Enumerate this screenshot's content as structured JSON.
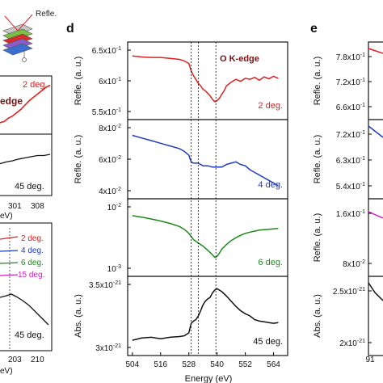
{
  "chart_data": [
    {
      "panel_label": "",
      "type": "line",
      "note": "left panels (cropped at image edge)",
      "header_text": "Refle.",
      "top": {
        "series_label": "2 deg.",
        "annotation": "edge",
        "color": "#e02020",
        "points": [
          [
            285,
            0.18
          ],
          [
            287,
            0.2
          ],
          [
            289,
            0.26
          ],
          [
            291,
            0.3
          ],
          [
            293,
            0.36
          ],
          [
            295,
            0.42
          ],
          [
            297,
            0.5
          ],
          [
            299,
            0.58
          ],
          [
            301,
            0.64
          ],
          [
            303,
            0.7
          ],
          [
            305,
            0.76
          ],
          [
            307,
            0.82
          ],
          [
            309,
            0.86
          ]
        ]
      },
      "middle": {
        "series_label": "45 deg.",
        "color": "#111111",
        "x_tick_labels": [
          "301",
          "308"
        ],
        "points": [
          [
            285,
            0.52
          ],
          [
            288,
            0.55
          ],
          [
            291,
            0.57
          ],
          [
            294,
            0.6
          ],
          [
            297,
            0.62
          ],
          [
            300,
            0.64
          ],
          [
            303,
            0.66
          ],
          [
            306,
            0.66
          ],
          [
            309,
            0.68
          ]
        ],
        "xlabel": "eV)"
      },
      "bottom": {
        "legend": [
          {
            "label": "2 deg.",
            "color": "#e02020"
          },
          {
            "label": "4 deg.",
            "color": "#1f3bbf"
          },
          {
            "label": "6 deg.",
            "color": "#1a8a1a"
          },
          {
            "label": "15 deg.",
            "color": "#d020c0"
          }
        ],
        "series_label": "45 deg.",
        "x_tick_labels": [
          "203",
          "210"
        ],
        "xlabel": "eV)"
      }
    },
    {
      "panel_label": "d",
      "type": "line",
      "xlabel": "Energy (eV)",
      "x_ticks": [
        "504",
        "516",
        "528",
        "540",
        "552",
        "564"
      ],
      "xlim": [
        502,
        570
      ],
      "dashed_lines_x": [
        529,
        532,
        539.5
      ],
      "subplots": [
        {
          "title": "O K-edge",
          "ylabel": "Refle. (a. u.)",
          "y_ticks": [
            "6.5x10",
            "6x10",
            "5.5x10"
          ],
          "y_tick_exp": "-1",
          "ylim": [
            0.53,
            0.66
          ],
          "series_label": "2 deg.",
          "color": "#e02020",
          "x": [
            504,
            508,
            512,
            516,
            520,
            524,
            526,
            528,
            529,
            530,
            531,
            532,
            533,
            534,
            535,
            536,
            537,
            538,
            539,
            540,
            541,
            542,
            543,
            544,
            546,
            548,
            550,
            552,
            554,
            556,
            558,
            560,
            562,
            564,
            566
          ],
          "y": [
            0.645,
            0.643,
            0.642,
            0.642,
            0.64,
            0.638,
            0.635,
            0.63,
            0.615,
            0.605,
            0.598,
            0.59,
            0.585,
            0.578,
            0.575,
            0.57,
            0.565,
            0.558,
            0.553,
            0.555,
            0.56,
            0.568,
            0.575,
            0.585,
            0.592,
            0.598,
            0.594,
            0.6,
            0.598,
            0.602,
            0.596,
            0.603,
            0.599,
            0.604,
            0.6
          ]
        },
        {
          "title": "",
          "ylabel": "Refle. (a. u.)",
          "y_ticks": [
            "8x10",
            "6x10",
            "4x10"
          ],
          "y_tick_exp": "-2",
          "ylim": [
            0.035,
            0.085
          ],
          "series_label": "4 deg.",
          "color": "#1f3bbf",
          "x": [
            504,
            508,
            512,
            516,
            520,
            524,
            526,
            528,
            529,
            530,
            532,
            534,
            536,
            538,
            540,
            542,
            544,
            546,
            548,
            550,
            552,
            554,
            556,
            558,
            560,
            562,
            564,
            566
          ],
          "y": [
            0.078,
            0.076,
            0.074,
            0.072,
            0.07,
            0.068,
            0.066,
            0.063,
            0.058,
            0.057,
            0.057,
            0.055,
            0.055,
            0.054,
            0.054,
            0.054,
            0.056,
            0.057,
            0.058,
            0.056,
            0.055,
            0.052,
            0.05,
            0.048,
            0.046,
            0.044,
            0.042,
            0.04
          ]
        },
        {
          "title": "",
          "ylabel": "",
          "y_ticks": [
            "10",
            "10"
          ],
          "y_tick_exps": [
            "-2",
            "-3"
          ],
          "scale": "log",
          "ylim": [
            0.0001,
            0.02
          ],
          "series_label": "6 deg.",
          "color": "#1a8a1a",
          "x": [
            504,
            508,
            512,
            516,
            520,
            524,
            526,
            528,
            530,
            532,
            534,
            536,
            538,
            539,
            540,
            541,
            542,
            544,
            546,
            548,
            550,
            552,
            554,
            556,
            558,
            560,
            562,
            564,
            566
          ],
          "y": [
            0.0085,
            0.0075,
            0.0065,
            0.0055,
            0.0045,
            0.0035,
            0.0028,
            0.002,
            0.0012,
            0.0009,
            0.0007,
            0.0005,
            0.00035,
            0.00028,
            0.0003,
            0.0004,
            0.00055,
            0.0008,
            0.0011,
            0.0014,
            0.0017,
            0.002,
            0.0022,
            0.0024,
            0.0026,
            0.0027,
            0.0028,
            0.0029,
            0.003
          ]
        },
        {
          "title": "",
          "ylabel": "Abs. (a. u.)",
          "y_ticks": [
            "3.5x10",
            "3x10"
          ],
          "y_tick_exp": "-21",
          "ylim": [
            2.9e-21,
            3.8e-21
          ],
          "series_label": "45 deg.",
          "color": "#111111",
          "x": [
            504,
            508,
            512,
            516,
            520,
            524,
            526,
            528,
            529,
            530,
            531,
            532,
            533,
            534,
            535,
            536,
            537,
            538,
            539,
            540,
            541,
            542,
            544,
            546,
            548,
            550,
            552,
            554,
            556,
            558,
            560,
            562,
            564,
            566
          ],
          "y": [
            3.02e-21,
            3.05e-21,
            3.06e-21,
            3.04e-21,
            3.06e-21,
            3.07e-21,
            3.08e-21,
            3.12e-21,
            3.25e-21,
            3.28e-21,
            3.3e-21,
            3.35e-21,
            3.42e-21,
            3.5e-21,
            3.55e-21,
            3.58e-21,
            3.6e-21,
            3.66e-21,
            3.7e-21,
            3.72e-21,
            3.7e-21,
            3.68e-21,
            3.62e-21,
            3.55e-21,
            3.48e-21,
            3.42e-21,
            3.38e-21,
            3.35e-21,
            3.3e-21,
            3.28e-21,
            3.27e-21,
            3.26e-21,
            3.25e-21,
            3.26e-21
          ]
        }
      ]
    },
    {
      "panel_label": "e",
      "type": "line",
      "note": "right panels (cropped at image edge)",
      "subplots": [
        {
          "ylabel": "Refle. (a. u.)",
          "y_ticks": [
            "7.8x10",
            "7.2x10",
            "6.6x10"
          ],
          "y_tick_exp": "-1",
          "color": "#e02020"
        },
        {
          "ylabel": "Refle. (a. u.)",
          "y_ticks": [
            "7.2x10",
            "6.3x10",
            "5.4x10"
          ],
          "y_tick_exp": "-1",
          "color": "#1f3bbf"
        },
        {
          "ylabel": "Refle. (a. u.)",
          "y_ticks": [
            "1.6x10",
            "8x10"
          ],
          "y_tick_exps": [
            "-1",
            "-2"
          ],
          "color": "#d020c0"
        },
        {
          "ylabel": "Abs. (a. u.)",
          "y_ticks": [
            "2.5x10",
            "2x10"
          ],
          "y_tick_exp": "-21",
          "color": "#111111"
        }
      ],
      "x_tick_labels": [
        "91"
      ]
    }
  ]
}
